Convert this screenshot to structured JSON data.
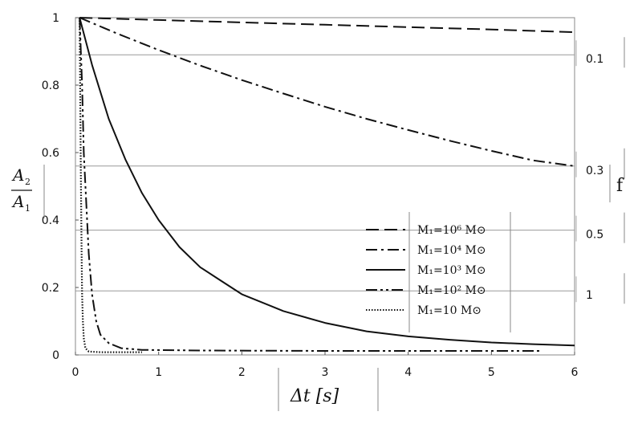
{
  "chart_data": {
    "type": "line",
    "xlabel": "Δt  [s]",
    "ylabel_numerator": "A",
    "ylabel_numerator_sub": "2",
    "ylabel_denominator": "A",
    "ylabel_denominator_sub": "1",
    "right_label": "f",
    "xlim": [
      0,
      6
    ],
    "ylim": [
      0,
      1
    ],
    "x_ticks": [
      "0",
      "1",
      "2",
      "3",
      "4",
      "5",
      "6"
    ],
    "y_ticks": [
      "0",
      "0.2",
      "0.4",
      "0.6",
      "0.8",
      "1"
    ],
    "grid": "horizontal reference lines at f levels",
    "f_reference_lines": [
      {
        "label": "0.1",
        "y": 0.89
      },
      {
        "label": "0.3",
        "y": 0.56
      },
      {
        "label": "0.5",
        "y": 0.37
      },
      {
        "label": "1",
        "y": 0.19
      }
    ],
    "legend_position": "lower-right",
    "series": [
      {
        "name": "M₁=10⁶ M⊙",
        "dash": "long-dash",
        "points": [
          [
            0.05,
            1.0
          ],
          [
            1,
            0.993
          ],
          [
            2,
            0.986
          ],
          [
            3,
            0.979
          ],
          [
            4,
            0.972
          ],
          [
            5,
            0.965
          ],
          [
            6,
            0.957
          ]
        ]
      },
      {
        "name": "M₁=10⁴ M⊙",
        "dash": "dash-dot",
        "points": [
          [
            0.05,
            1.0
          ],
          [
            0.5,
            0.953
          ],
          [
            1,
            0.904
          ],
          [
            1.5,
            0.858
          ],
          [
            2,
            0.815
          ],
          [
            2.5,
            0.775
          ],
          [
            3,
            0.736
          ],
          [
            3.5,
            0.7
          ],
          [
            4,
            0.667
          ],
          [
            4.5,
            0.635
          ],
          [
            5,
            0.605
          ],
          [
            5.5,
            0.577
          ],
          [
            6,
            0.56
          ]
        ]
      },
      {
        "name": "M₁=10³ M⊙",
        "dash": "solid",
        "points": [
          [
            0.05,
            1.0
          ],
          [
            0.2,
            0.86
          ],
          [
            0.4,
            0.7
          ],
          [
            0.6,
            0.58
          ],
          [
            0.8,
            0.48
          ],
          [
            1,
            0.4
          ],
          [
            1.25,
            0.32
          ],
          [
            1.5,
            0.26
          ],
          [
            1.75,
            0.22
          ],
          [
            2,
            0.18
          ],
          [
            2.5,
            0.13
          ],
          [
            3,
            0.095
          ],
          [
            3.5,
            0.07
          ],
          [
            4,
            0.055
          ],
          [
            4.5,
            0.045
          ],
          [
            5,
            0.037
          ],
          [
            5.5,
            0.032
          ],
          [
            6,
            0.028
          ]
        ]
      },
      {
        "name": "M₁=10² M⊙",
        "dash": "dash-dot-dot",
        "points": [
          [
            0.05,
            1.0
          ],
          [
            0.08,
            0.8
          ],
          [
            0.1,
            0.6
          ],
          [
            0.13,
            0.45
          ],
          [
            0.16,
            0.3
          ],
          [
            0.2,
            0.18
          ],
          [
            0.25,
            0.1
          ],
          [
            0.3,
            0.06
          ],
          [
            0.4,
            0.035
          ],
          [
            0.55,
            0.02
          ],
          [
            0.8,
            0.015
          ],
          [
            1.5,
            0.013
          ],
          [
            3,
            0.012
          ],
          [
            5.6,
            0.012
          ]
        ]
      },
      {
        "name": "M₁=10 M⊙",
        "dash": "dotted",
        "points": [
          [
            0.05,
            1.0
          ],
          [
            0.055,
            0.85
          ],
          [
            0.06,
            0.7
          ],
          [
            0.065,
            0.55
          ],
          [
            0.07,
            0.4
          ],
          [
            0.075,
            0.28
          ],
          [
            0.08,
            0.18
          ],
          [
            0.09,
            0.1
          ],
          [
            0.1,
            0.05
          ],
          [
            0.12,
            0.02
          ],
          [
            0.16,
            0.01
          ],
          [
            0.3,
            0.008
          ],
          [
            0.8,
            0.008
          ]
        ]
      }
    ]
  }
}
